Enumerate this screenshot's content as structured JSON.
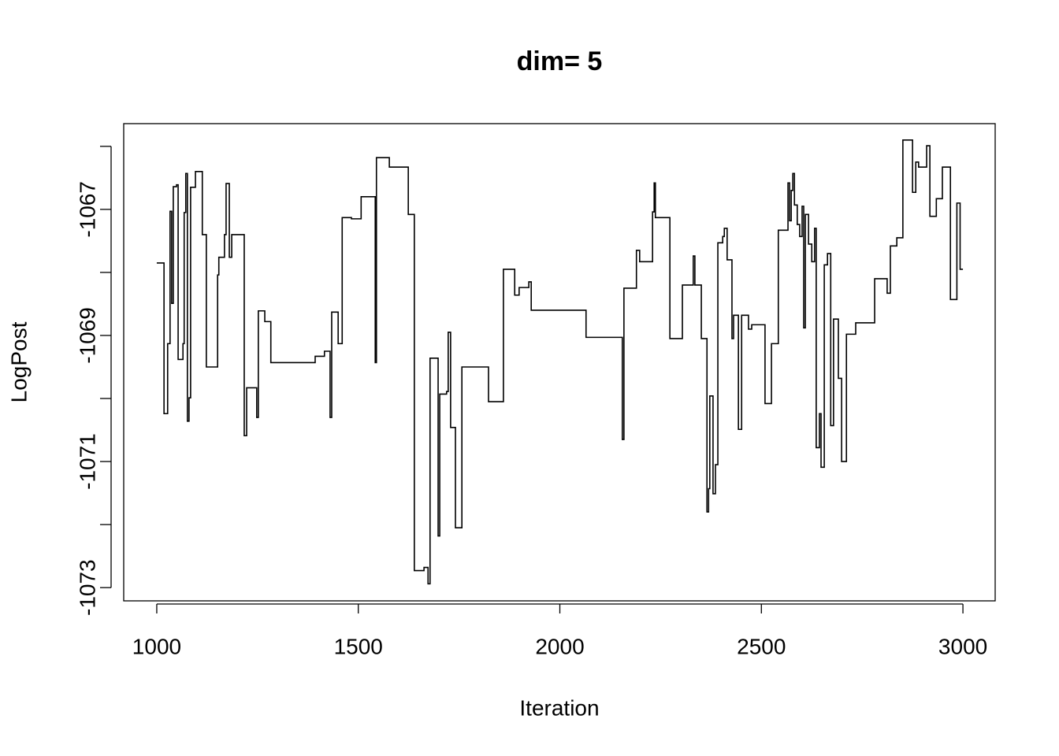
{
  "chart_data": {
    "type": "line",
    "title": "dim= 5",
    "x_label": "Iteration",
    "y_label": "LogPost",
    "xlim": [
      918,
      3080
    ],
    "ylim": [
      -1073.21,
      -1065.64
    ],
    "xticks": [
      1000,
      1500,
      2000,
      2500,
      3000
    ],
    "yticks": [
      -1073,
      -1072,
      -1071,
      -1070,
      -1069,
      -1068,
      -1067,
      -1066
    ],
    "color": "#000000",
    "x": [
      1000,
      1018,
      1027,
      1033,
      1037,
      1041,
      1049,
      1053,
      1065,
      1068,
      1072,
      1076,
      1080,
      1084,
      1096,
      1113,
      1123,
      1147,
      1151,
      1154,
      1168,
      1172,
      1180,
      1186,
      1217,
      1223,
      1248,
      1252,
      1268,
      1283,
      1393,
      1416,
      1430,
      1434,
      1450,
      1460,
      1483,
      1507,
      1542,
      1545,
      1577,
      1624,
      1639,
      1663,
      1673,
      1678,
      1698,
      1702,
      1719,
      1723,
      1729,
      1741,
      1757,
      1823,
      1860,
      1888,
      1899,
      1923,
      1929,
      2065,
      2155,
      2159,
      2190,
      2198,
      2230,
      2234,
      2237,
      2273,
      2304,
      2331,
      2335,
      2351,
      2365,
      2369,
      2372,
      2380,
      2386,
      2392,
      2404,
      2408,
      2415,
      2427,
      2431,
      2443,
      2451,
      2468,
      2476,
      2509,
      2525,
      2542,
      2566,
      2570,
      2574,
      2578,
      2582,
      2589,
      2595,
      2601,
      2605,
      2609,
      2617,
      2625,
      2632,
      2636,
      2644,
      2648,
      2656,
      2664,
      2672,
      2679,
      2691,
      2699,
      2711,
      2734,
      2781,
      2812,
      2820,
      2836,
      2851,
      2875,
      2883,
      2890,
      2910,
      2918,
      2934,
      2949,
      2969,
      2985,
      2993,
      3000
    ],
    "values": [
      -1067.85,
      -1070.24,
      -1069.13,
      -1067.03,
      -1068.49,
      -1066.64,
      -1066.61,
      -1069.38,
      -1069.13,
      -1067.05,
      -1066.43,
      -1070.36,
      -1069.99,
      -1066.65,
      -1066.4,
      -1067.4,
      -1069.5,
      -1069.5,
      -1068.04,
      -1067.76,
      -1067.4,
      -1066.59,
      -1067.76,
      -1067.4,
      -1070.59,
      -1069.83,
      -1070.3,
      -1068.61,
      -1068.78,
      -1069.43,
      -1069.33,
      -1069.25,
      -1070.3,
      -1068.63,
      -1069.13,
      -1067.13,
      -1067.15,
      -1066.8,
      -1069.43,
      -1066.18,
      -1066.33,
      -1067.08,
      -1072.73,
      -1072.68,
      -1072.94,
      -1069.36,
      -1072.18,
      -1069.93,
      -1069.89,
      -1068.95,
      -1070.46,
      -1072.05,
      -1069.5,
      -1070.05,
      -1067.95,
      -1068.36,
      -1068.24,
      -1068.15,
      -1068.6,
      -1069.03,
      -1070.65,
      -1068.25,
      -1067.65,
      -1067.83,
      -1067.04,
      -1066.58,
      -1067.13,
      -1069.05,
      -1068.2,
      -1067.74,
      -1068.2,
      -1069.05,
      -1071.8,
      -1071.43,
      -1069.96,
      -1071.51,
      -1071.05,
      -1067.53,
      -1067.43,
      -1067.3,
      -1067.8,
      -1069.05,
      -1068.68,
      -1070.49,
      -1068.68,
      -1068.9,
      -1068.83,
      -1070.08,
      -1069.13,
      -1067.33,
      -1066.58,
      -1067.18,
      -1066.7,
      -1066.43,
      -1066.93,
      -1067.24,
      -1067.43,
      -1066.95,
      -1068.88,
      -1067.08,
      -1067.55,
      -1067.83,
      -1067.3,
      -1070.78,
      -1070.24,
      -1071.09,
      -1067.88,
      -1067.7,
      -1070.43,
      -1068.74,
      -1069.68,
      -1071.0,
      -1068.98,
      -1068.8,
      -1068.1,
      -1068.33,
      -1067.58,
      -1067.45,
      -1065.9,
      -1066.73,
      -1066.25,
      -1066.33,
      -1065.99,
      -1067.11,
      -1066.83,
      -1066.33,
      -1068.43,
      -1066.9,
      -1067.95,
      -1067.95
    ]
  }
}
